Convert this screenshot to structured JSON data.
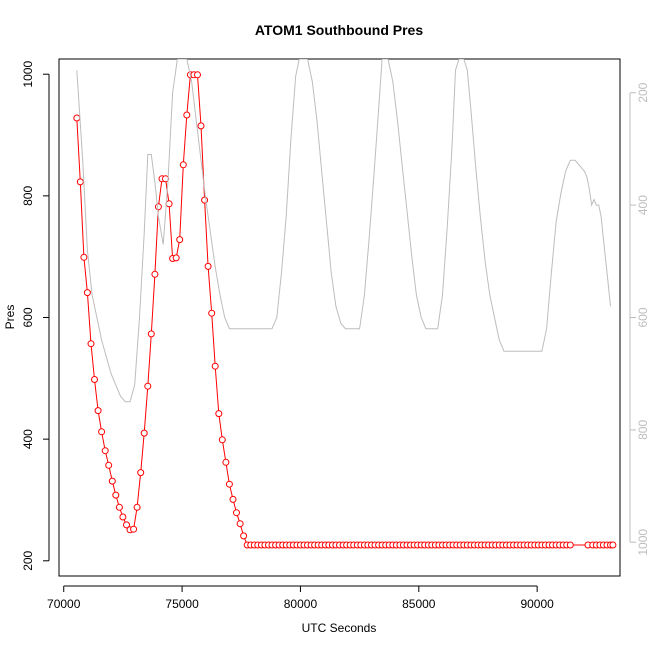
{
  "chart_data": {
    "type": "line",
    "title": "ATOM1 Southbound Pres",
    "xlabel": "UTC Seconds",
    "ylabel": "Pres",
    "xlim": [
      69800,
      93500
    ],
    "ylim": [
      175,
      1025
    ],
    "xticks": [
      70000,
      75000,
      80000,
      85000,
      90000
    ],
    "yticks": [
      200,
      400,
      600,
      800,
      1000
    ],
    "y2lim": [
      1060,
      140
    ],
    "y2ticks": [
      200,
      400,
      600,
      800,
      1000
    ],
    "grid": false,
    "series": [
      {
        "color": "#ff0000",
        "style": "line-with-open-circles",
        "x": [
          70550,
          70700,
          70850,
          71000,
          71150,
          71300,
          71450,
          71600,
          71750,
          71900,
          72050,
          72200,
          72350,
          72500,
          72650,
          72800,
          72950,
          73100,
          73250,
          73400,
          73550,
          73700,
          73850,
          74000,
          74150,
          74300,
          74450,
          74600,
          74750,
          74900,
          75050,
          75200,
          75350,
          75500,
          75650,
          75800,
          75950,
          76100,
          76250,
          76400,
          76550,
          76700,
          76850,
          77000,
          77150,
          77300,
          77450,
          77600,
          77750,
          77900,
          78050,
          78200,
          78350,
          78500,
          78650,
          78800,
          78950,
          79100,
          79250,
          79400,
          79550,
          79700,
          79850,
          80000,
          80150,
          80300,
          80450,
          80600,
          80750,
          80900,
          81050,
          81200,
          81350,
          81500,
          81650,
          81800,
          81950,
          82100,
          82250,
          82400,
          82550,
          82700,
          82850,
          83000,
          83150,
          83300,
          83450,
          83600,
          83750,
          83900,
          84050,
          84200,
          84350,
          84500,
          84650,
          84800,
          84950,
          85100,
          85250,
          85400,
          85550,
          85700,
          85850,
          86000,
          86150,
          86300,
          86450,
          86600,
          86750,
          86900,
          87050,
          87200,
          87350,
          87500,
          87650,
          87800,
          87950,
          88100,
          88250,
          88400,
          88550,
          88700,
          88850,
          89000,
          89150,
          89300,
          89450,
          89600,
          89750,
          89900,
          90050,
          90200,
          90350,
          90500,
          90650,
          90800,
          90950,
          91100,
          91250,
          91400,
          92150,
          92350,
          92500,
          92650,
          92800,
          92950,
          93100,
          93200
        ],
        "y": [
          928,
          823,
          699,
          641,
          557,
          498,
          447,
          412,
          381,
          357,
          331,
          308,
          288,
          272,
          259,
          251,
          252,
          288,
          345,
          410,
          487,
          573,
          671,
          782,
          828,
          828,
          787,
          697,
          698,
          728,
          851,
          933,
          999,
          999,
          999,
          915,
          793,
          684,
          607,
          520,
          442,
          399,
          362,
          326,
          301,
          279,
          261,
          241,
          226,
          226,
          226,
          226,
          226,
          226,
          226,
          226,
          226,
          226,
          226,
          226,
          226,
          226,
          226,
          226,
          226,
          226,
          226,
          226,
          226,
          226,
          226,
          226,
          226,
          226,
          226,
          226,
          226,
          226,
          226,
          226,
          226,
          226,
          226,
          226,
          226,
          226,
          226,
          226,
          226,
          226,
          226,
          226,
          226,
          226,
          226,
          226,
          226,
          226,
          226,
          226,
          226,
          226,
          226,
          226,
          226,
          226,
          226,
          226,
          226,
          226,
          226,
          226,
          226,
          226,
          226,
          226,
          226,
          226,
          226,
          226,
          226,
          226,
          226,
          226,
          226,
          226,
          226,
          226,
          226,
          226,
          226,
          226,
          226,
          226,
          226,
          226,
          226,
          226,
          226,
          226,
          226,
          226,
          226,
          226,
          226,
          226,
          226,
          226
        ]
      },
      {
        "color": "#bdbdbd",
        "style": "line",
        "axis": "right",
        "x": [
          70550,
          70800,
          71000,
          71200,
          71400,
          71600,
          71800,
          72000,
          72200,
          72400,
          72600,
          72800,
          73000,
          73200,
          73400,
          73550,
          73700,
          73850,
          74000,
          74200,
          74400,
          74600,
          74800,
          75000,
          75200,
          75400,
          75600,
          75800,
          76000,
          76200,
          76400,
          76600,
          76800,
          77000,
          77500,
          78000,
          78500,
          78800,
          79000,
          79200,
          79400,
          79600,
          79800,
          79950,
          80050,
          80150,
          80300,
          80500,
          80700,
          80900,
          81100,
          81300,
          81500,
          81700,
          81900,
          82100,
          82300,
          82500,
          82700,
          82900,
          83100,
          83300,
          83450,
          83550,
          83700,
          83900,
          84100,
          84300,
          84500,
          84700,
          84900,
          85100,
          85300,
          85600,
          85800,
          86000,
          86200,
          86400,
          86550,
          86700,
          86900,
          87050,
          87200,
          87400,
          87600,
          87800,
          88000,
          88200,
          88400,
          88600,
          88800,
          89000,
          89500,
          90000,
          90200,
          90400,
          90600,
          90800,
          91000,
          91200,
          91400,
          91600,
          91800,
          92000,
          92100,
          92200,
          92300,
          92400,
          92500,
          92600,
          92700,
          92800,
          92900,
          93000,
          93100
        ],
        "y": [
          160,
          320,
          480,
          560,
          600,
          640,
          670,
          700,
          720,
          740,
          750,
          750,
          720,
          600,
          450,
          310,
          310,
          360,
          420,
          470,
          360,
          200,
          140,
          140,
          140,
          180,
          250,
          320,
          390,
          450,
          510,
          560,
          600,
          620,
          620,
          620,
          620,
          620,
          600,
          520,
          420,
          280,
          170,
          140,
          140,
          140,
          140,
          180,
          250,
          340,
          430,
          520,
          580,
          610,
          620,
          620,
          620,
          620,
          560,
          460,
          350,
          230,
          140,
          140,
          140,
          180,
          250,
          330,
          410,
          490,
          560,
          600,
          620,
          620,
          620,
          560,
          440,
          300,
          160,
          140,
          140,
          160,
          230,
          330,
          420,
          500,
          560,
          600,
          640,
          660,
          660,
          660,
          660,
          660,
          660,
          620,
          520,
          430,
          380,
          340,
          320,
          320,
          330,
          340,
          350,
          370,
          400,
          390,
          400,
          400,
          420,
          460,
          500,
          540,
          580
        ]
      }
    ]
  }
}
